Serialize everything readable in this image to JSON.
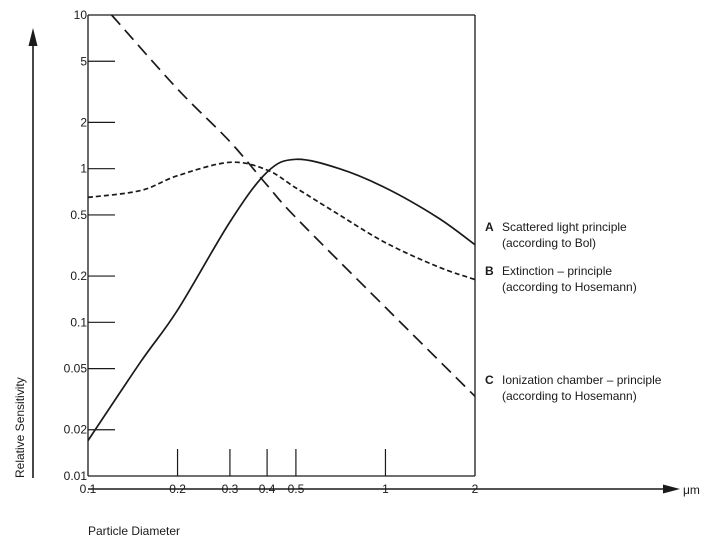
{
  "chart_data": {
    "type": "line",
    "xlabel": "Particle Diameter",
    "x_unit": "μm",
    "ylabel": "Relative Sensitivity",
    "xscale": "log",
    "yscale": "log",
    "xlim": [
      0.1,
      2
    ],
    "ylim": [
      0.01,
      10
    ],
    "x_ticks": [
      0.1,
      0.2,
      0.3,
      0.4,
      0.5,
      1,
      2
    ],
    "x_tick_labels": [
      "0.1",
      "0.2",
      "0.3",
      "0.4",
      "0.5",
      "1",
      "2"
    ],
    "y_ticks": [
      0.01,
      0.02,
      0.05,
      0.1,
      0.2,
      0.5,
      1,
      2,
      5,
      10
    ],
    "y_tick_labels": [
      "0.01",
      "0.02",
      "0.05",
      "0.1",
      "0.2",
      "0.5",
      "1",
      "2",
      "5",
      "10"
    ],
    "grid": false,
    "series": [
      {
        "letter": "A",
        "name_line1": "Scattered light principle",
        "name_line2": "(according to Bol)",
        "style": "solid",
        "color": "#1a1a1a",
        "x": [
          0.1,
          0.15,
          0.2,
          0.3,
          0.4,
          0.5,
          0.7,
          1,
          1.5,
          2
        ],
        "y": [
          0.017,
          0.055,
          0.12,
          0.45,
          0.95,
          1.15,
          1.0,
          0.75,
          0.48,
          0.32
        ]
      },
      {
        "letter": "B",
        "name_line1": "Extinction – principle",
        "name_line2": "(according to Hosemann)",
        "style": "short-dash",
        "color": "#1a1a1a",
        "x": [
          0.1,
          0.15,
          0.2,
          0.3,
          0.4,
          0.5,
          0.7,
          1,
          1.5,
          2
        ],
        "y": [
          0.65,
          0.72,
          0.9,
          1.1,
          0.98,
          0.75,
          0.5,
          0.33,
          0.23,
          0.19
        ]
      },
      {
        "letter": "C",
        "name_line1": "Ionization chamber – principle",
        "name_line2": "(according to Hosemann)",
        "style": "long-dash",
        "color": "#1a1a1a",
        "x": [
          0.12,
          0.2,
          0.3,
          0.4,
          0.5,
          1,
          2
        ],
        "y": [
          10,
          3.3,
          1.5,
          0.78,
          0.48,
          0.125,
          0.033
        ]
      }
    ]
  }
}
